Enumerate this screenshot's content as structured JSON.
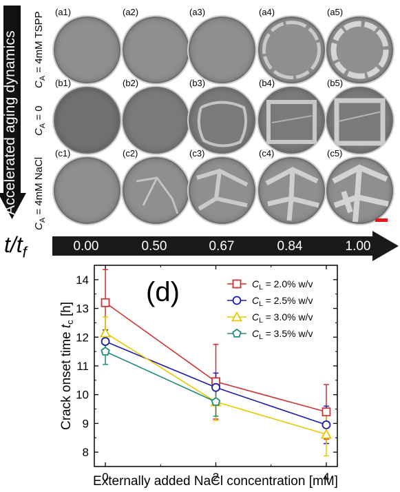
{
  "vertical_arrow_text": "Accelerated aging dynamics",
  "rows": [
    {
      "label_pre": "C",
      "label_sub": "A",
      "label_post": " = 4mM TSPP",
      "panels": [
        "(a1)",
        "(a2)",
        "(a3)",
        "(a4)",
        "(a5)"
      ]
    },
    {
      "label_pre": "C",
      "label_sub": "A",
      "label_post": " = 0",
      "panels": [
        "(b1)",
        "(b2)",
        "(b3)",
        "(b4)",
        "(b5)"
      ]
    },
    {
      "label_pre": "C",
      "label_sub": "A",
      "label_post": " = 4mM NaCl",
      "panels": [
        "(c1)",
        "(c2)",
        "(c3)",
        "(c4)",
        "(c5)"
      ]
    }
  ],
  "time_axis": {
    "label_main": "t/t",
    "label_sub": "f",
    "values": [
      "0.00",
      "0.50",
      "0.67",
      "0.84",
      "1.00"
    ]
  },
  "scale_bar_color": "#e8141b",
  "chart_data": {
    "type": "line",
    "panel_label": "(d)",
    "xlabel": "Externally added NaCl concentration [mM]",
    "ylabel_pre": "Crack onset time ",
    "ylabel_sym": "t",
    "ylabel_sub": "c",
    "ylabel_post": " [h]",
    "x": [
      0,
      2,
      4
    ],
    "xticks": [
      "0",
      "2",
      "4"
    ],
    "yticks": [
      "8",
      "9",
      "10",
      "11",
      "12",
      "13",
      "14"
    ],
    "xlim": [
      -0.2,
      4.2
    ],
    "ylim": [
      7.5,
      14.5
    ],
    "legend_position": "top-right",
    "series": [
      {
        "name_pre": "C",
        "name_sub": "L",
        "name_post": " = 2.0% w/v",
        "color": "#cc3333",
        "marker": "square",
        "values": [
          13.2,
          10.45,
          9.4
        ],
        "err": [
          1.15,
          1.3,
          0.95
        ]
      },
      {
        "name_pre": "C",
        "name_sub": "L",
        "name_post": " = 2.5% w/v",
        "color": "#1a1aaa",
        "marker": "circle",
        "values": [
          11.85,
          10.25,
          8.95
        ],
        "err": [
          0.4,
          0.5,
          0.65
        ]
      },
      {
        "name_pre": "C",
        "name_sub": "L",
        "name_post": " = 3.0% w/v",
        "color": "#e6c800",
        "marker": "triangle",
        "values": [
          12.15,
          9.75,
          8.62
        ],
        "err": [
          0.55,
          0.65,
          0.75
        ]
      },
      {
        "name_pre": "C",
        "name_sub": "L",
        "name_post": " = 3.5% w/v",
        "color": "#208a80",
        "marker": "pentagon",
        "values": [
          11.5,
          9.75,
          null
        ],
        "err": [
          0.45,
          0.5,
          null
        ]
      }
    ]
  }
}
